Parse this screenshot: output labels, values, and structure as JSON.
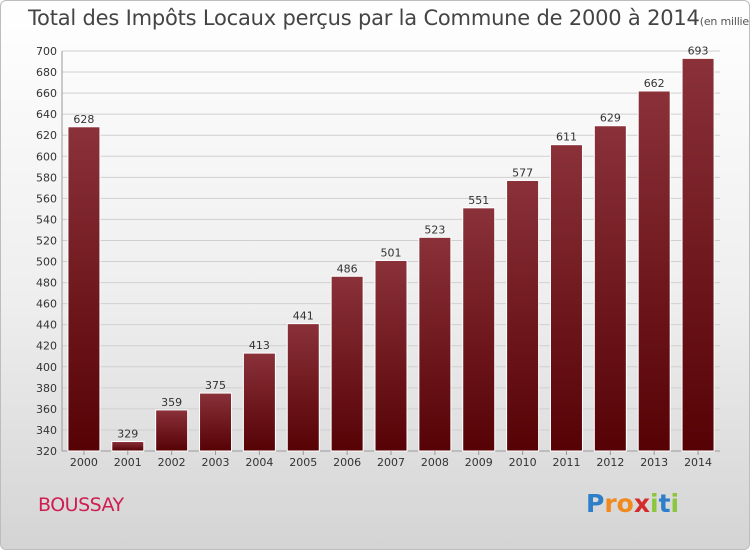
{
  "title": "Total des Impôts Locaux perçus par la Commune de 2000 à 2014",
  "unit": "(en milliers d'€)",
  "commune": "BOUSSAY",
  "logo": {
    "letters": [
      "P",
      "r",
      "o",
      "x",
      "i",
      "t",
      "i"
    ],
    "colors": [
      "#2e7fc9",
      "#f08a1e",
      "#f08a1e",
      "#d62a2a",
      "#8cc63e",
      "#2e7fc9",
      "#8cc63e"
    ]
  },
  "colors": {
    "bar_top": "#8a3139",
    "bar_bottom": "#560205",
    "bar_edge": "#ffffff",
    "grid": "#d0d0d0",
    "title": "#444444",
    "commune": "#cf1d52"
  },
  "chart_data": {
    "type": "bar",
    "title": "Total des Impôts Locaux perçus par la Commune de 2000 à 2014",
    "xlabel": "",
    "ylabel": "",
    "ylim": [
      320,
      700
    ],
    "ytick_step": 20,
    "grid": true,
    "categories": [
      "2000",
      "2001",
      "2002",
      "2003",
      "2004",
      "2005",
      "2006",
      "2007",
      "2008",
      "2009",
      "2010",
      "2011",
      "2012",
      "2013",
      "2014"
    ],
    "values": [
      628,
      329,
      359,
      375,
      413,
      441,
      486,
      501,
      523,
      551,
      577,
      611,
      629,
      662,
      693
    ]
  }
}
